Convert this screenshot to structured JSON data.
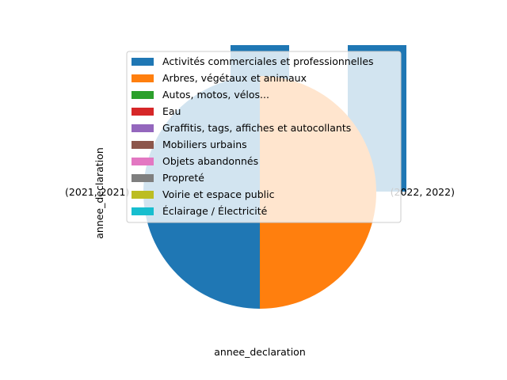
{
  "chart_data": [
    {
      "type": "pie",
      "xlabel": "annee_declaration",
      "ylabel": "annee_declaration",
      "categories": [
        "(2021, 2021)",
        "(2022, 2022)"
      ],
      "values": [
        50,
        50
      ],
      "colors": [
        "#1f77b4",
        "#ff7f0e"
      ],
      "wedge_labels": [
        "(2021, 2021)",
        "(2022, 2022)"
      ],
      "start_angle_deg": 90,
      "legend_placement": "upper-right"
    },
    {
      "type": "bar",
      "categories": [
        "(2021, 2021)",
        "(2022, 2022)"
      ],
      "series": [
        {
          "name": "Activités commerciales et professionnelles",
          "color": "#1f77b4"
        },
        {
          "name": "Arbres, végétaux et animaux",
          "color": "#ff7f0e"
        },
        {
          "name": "Autos, motos, vélos...",
          "color": "#2ca02c"
        },
        {
          "name": "Eau",
          "color": "#d62728"
        },
        {
          "name": "Graffitis, tags, affiches et autocollants",
          "color": "#9467bd"
        },
        {
          "name": "Mobiliers urbains",
          "color": "#8c564b"
        },
        {
          "name": "Objets abandonnés",
          "color": "#e377c2"
        },
        {
          "name": "Propreté",
          "color": "#7f7f7f"
        },
        {
          "name": "Voirie et espace public",
          "color": "#bcbd22"
        },
        {
          "name": "Éclairage / Électricité",
          "color": "#17becf"
        }
      ],
      "visible_bar_color": "#1f77b4",
      "legend_placement": "upper-right"
    }
  ]
}
